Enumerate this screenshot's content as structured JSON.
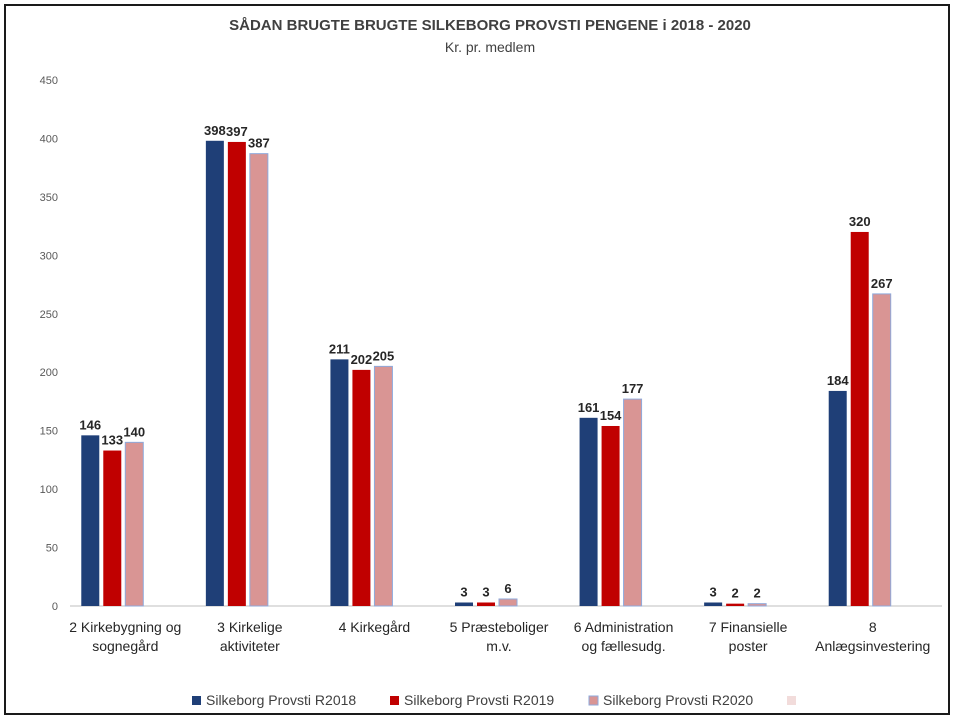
{
  "chart_data": {
    "type": "bar",
    "title": "SÅDAN BRUGTE BRUGTE SILKEBORG PROVSTI PENGENE i 2018 - 2020",
    "subtitle": "Kr. pr. medlem",
    "xlabel": "",
    "ylabel": "",
    "ylim": [
      0,
      450
    ],
    "yticks": [
      0,
      50,
      100,
      150,
      200,
      250,
      300,
      350,
      400,
      450
    ],
    "grid": false,
    "legend_position": "bottom",
    "categories": [
      [
        "2  Kirkebygning og",
        "sognegård"
      ],
      [
        "3  Kirkelige",
        "aktiviteter"
      ],
      [
        "4  Kirkegård"
      ],
      [
        "5  Præsteboliger",
        "m.v."
      ],
      [
        "6  Administration",
        "og fællesudg."
      ],
      [
        "7  Finansielle",
        "poster"
      ],
      [
        "8",
        "Anlægsinvestering"
      ]
    ],
    "series": [
      {
        "name": "Silkeborg Provsti R2018",
        "color": "#1f3f77",
        "values": [
          146,
          398,
          211,
          3,
          161,
          3,
          184
        ]
      },
      {
        "name": "Silkeborg Provsti R2019",
        "color": "#c00000",
        "values": [
          133,
          397,
          202,
          3,
          154,
          2,
          320
        ]
      },
      {
        "name": "Silkeborg Provsti R2020",
        "color": "#d99594",
        "values": [
          140,
          387,
          205,
          6,
          177,
          2,
          267
        ]
      }
    ],
    "extra_legend_swatch_color": "#f2dcdb"
  }
}
